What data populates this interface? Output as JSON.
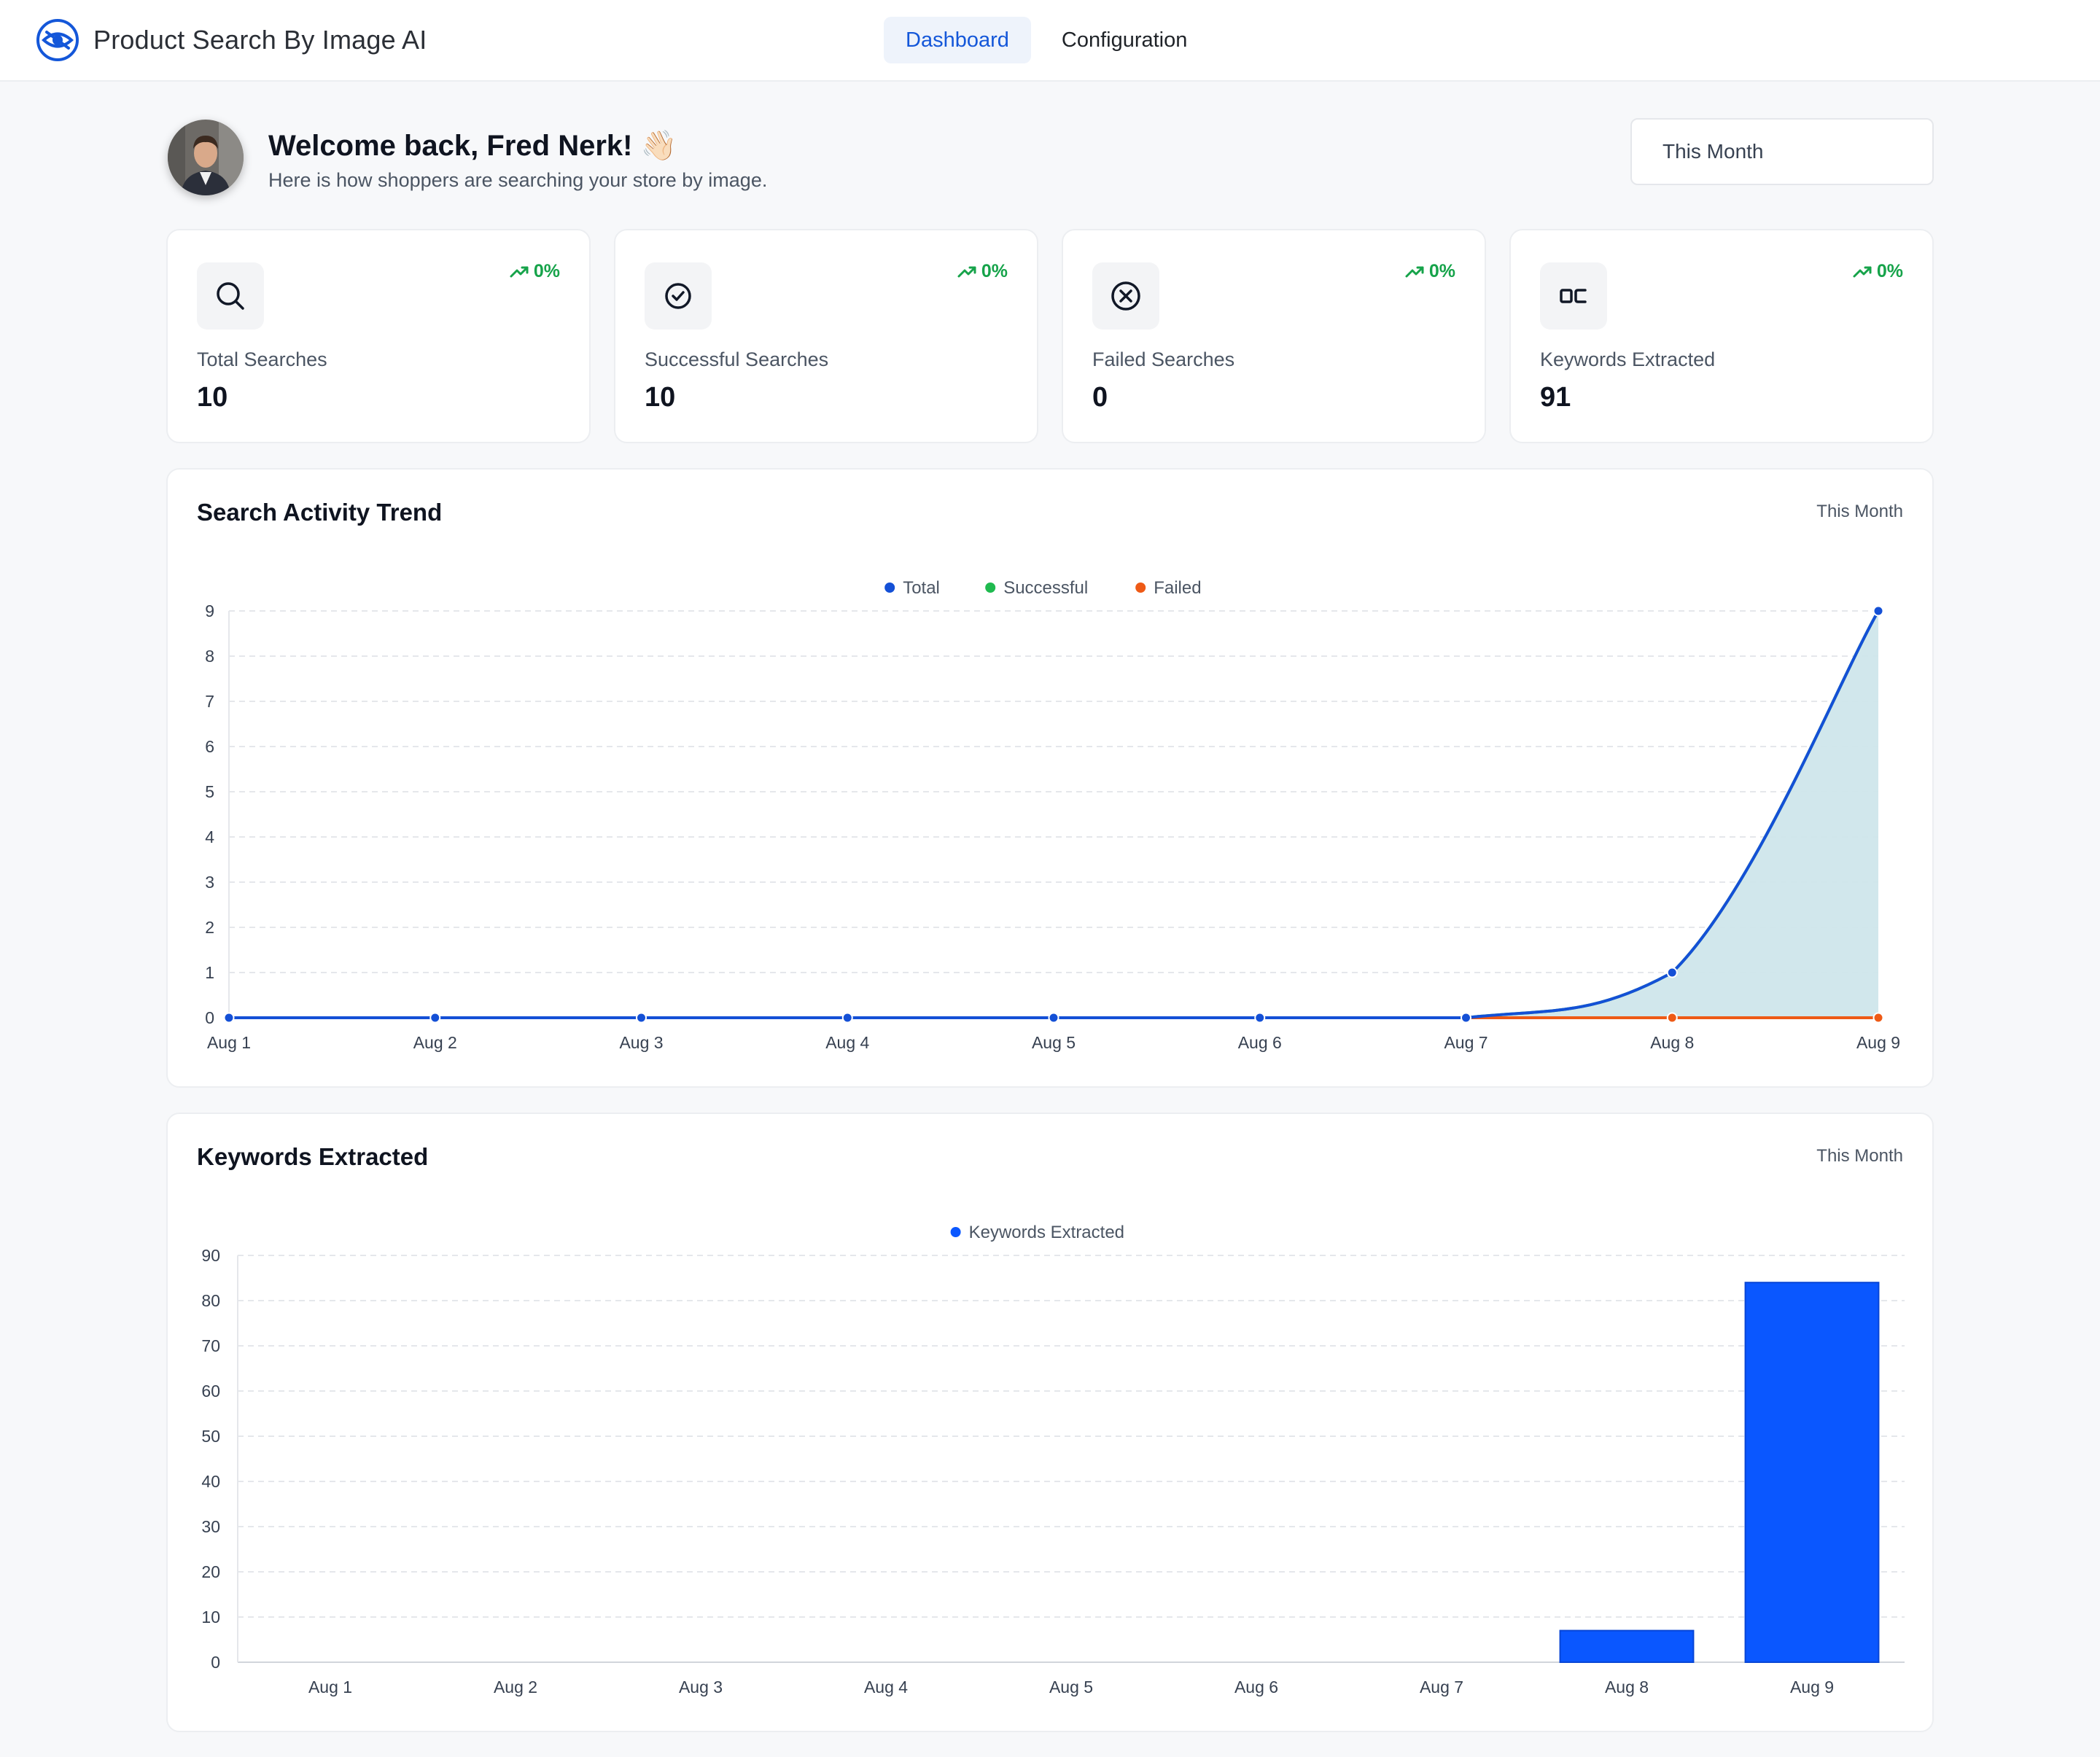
{
  "header": {
    "app_title": "Product Search By Image AI",
    "logo_icon": "eye-scan-icon",
    "tabs": [
      {
        "label": "Dashboard",
        "active": true
      },
      {
        "label": "Configuration",
        "active": false
      }
    ]
  },
  "welcome": {
    "title": "Welcome back, Fred Nerk! 👋🏻",
    "subtitle": "Here is how shoppers are searching your store by image."
  },
  "period_select": {
    "value": "This Month"
  },
  "stats": [
    {
      "label": "Total Searches",
      "value": "10",
      "trend": "0%",
      "icon": "search-icon"
    },
    {
      "label": "Successful Searches",
      "value": "10",
      "trend": "0%",
      "icon": "check-circle-icon"
    },
    {
      "label": "Failed Searches",
      "value": "0",
      "trend": "0%",
      "icon": "x-circle-icon"
    },
    {
      "label": "Keywords Extracted",
      "value": "91",
      "trend": "0%",
      "icon": "keywords-icon"
    }
  ],
  "colors": {
    "accent": "#1457d9",
    "total": "#1450d6",
    "successful": "#1fba4f",
    "failed": "#ee5a16",
    "area_fill": "#cfe6eb",
    "bar": "#0a57ff",
    "trend_up": "#16a34a"
  },
  "search_chart": {
    "title": "Search Activity Trend",
    "period": "This Month"
  },
  "keywords_chart": {
    "title": "Keywords Extracted",
    "period": "This Month"
  },
  "chart_data": [
    {
      "type": "line",
      "title": "Search Activity Trend",
      "categories": [
        "Aug 1",
        "Aug 2",
        "Aug 3",
        "Aug 4",
        "Aug 5",
        "Aug 6",
        "Aug 7",
        "Aug 8",
        "Aug 9"
      ],
      "series": [
        {
          "name": "Total",
          "values": [
            0,
            0,
            0,
            0,
            0,
            0,
            0,
            1,
            9
          ]
        },
        {
          "name": "Successful",
          "values": [
            0,
            0,
            0,
            0,
            0,
            0,
            0,
            1,
            9
          ]
        },
        {
          "name": "Failed",
          "values": [
            0,
            0,
            0,
            0,
            0,
            0,
            0,
            0,
            0
          ]
        }
      ],
      "yticks": [
        "0",
        "1",
        "2",
        "3",
        "4",
        "5",
        "6",
        "7",
        "8",
        "9"
      ],
      "ylim": [
        0,
        9
      ],
      "legend": "top-center",
      "grid": true
    },
    {
      "type": "bar",
      "title": "Keywords Extracted",
      "categories": [
        "Aug 1",
        "Aug 2",
        "Aug 3",
        "Aug 4",
        "Aug 5",
        "Aug 6",
        "Aug 7",
        "Aug 8",
        "Aug 9"
      ],
      "series": [
        {
          "name": "Keywords Extracted",
          "values": [
            0,
            0,
            0,
            0,
            0,
            0,
            0,
            7,
            84
          ]
        }
      ],
      "yticks": [
        "0",
        "10",
        "20",
        "30",
        "40",
        "50",
        "60",
        "70",
        "80",
        "90"
      ],
      "ylim": [
        0,
        90
      ],
      "legend": "top-center",
      "grid": true
    }
  ]
}
